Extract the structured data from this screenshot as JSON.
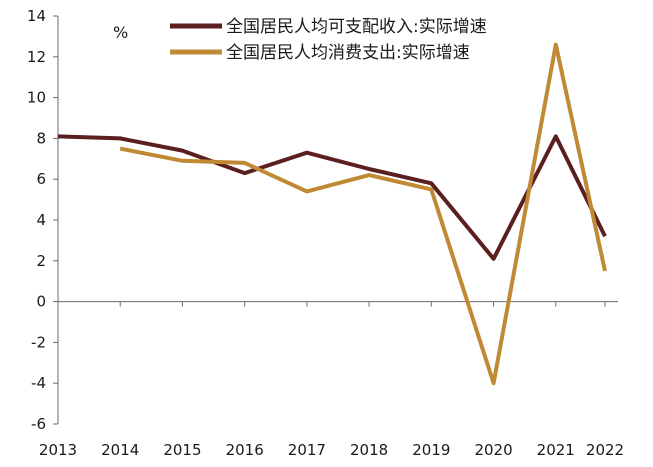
{
  "chart_data": {
    "type": "line",
    "unit": "%",
    "x": [
      "2013",
      "2014",
      "2015",
      "2016",
      "2017",
      "2018",
      "2019",
      "2020",
      "2021",
      "2022"
    ],
    "series": [
      {
        "name": "全国居民人均可支配收入:实际增速",
        "color": "#5c1f1f",
        "values": [
          8.1,
          8.0,
          7.4,
          6.3,
          7.3,
          6.5,
          5.8,
          2.1,
          8.1,
          3.2
        ]
      },
      {
        "name": "全国居民人均消费支出:实际增速",
        "color": "#c08a35",
        "values": [
          null,
          7.5,
          6.9,
          6.8,
          5.4,
          6.2,
          5.5,
          -4.0,
          12.6,
          1.5
        ]
      }
    ],
    "ylim": [
      -6,
      14
    ],
    "yticks": [
      "14",
      "12",
      "10",
      "8",
      "6",
      "4",
      "2",
      "0",
      "-2",
      "-4",
      "-6"
    ],
    "legend_position": "top"
  }
}
